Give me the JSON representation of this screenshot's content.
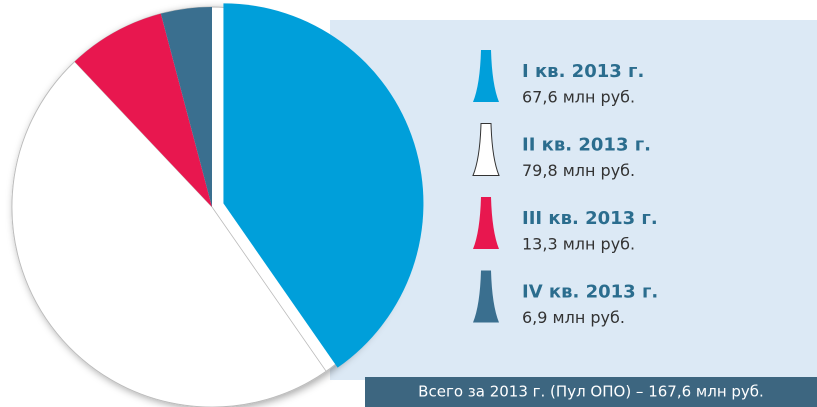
{
  "chart_data": {
    "type": "pie",
    "categories": [
      "I кв. 2013 г.",
      "II кв. 2013 г.",
      "III кв. 2013 г.",
      "IV кв. 2013 г."
    ],
    "values": [
      67.6,
      79.8,
      13.3,
      6.9
    ],
    "value_labels": [
      "67,6 млн руб.",
      "79,8 млн руб.",
      "13,3 млн руб.",
      "6,9 млн руб."
    ],
    "colors": [
      "#009fda",
      "#ffffff",
      "#e8174f",
      "#3a6f8f"
    ],
    "total": "Всего за 2013 г.  (Пул ОПО)  – 167,6 млн руб."
  }
}
